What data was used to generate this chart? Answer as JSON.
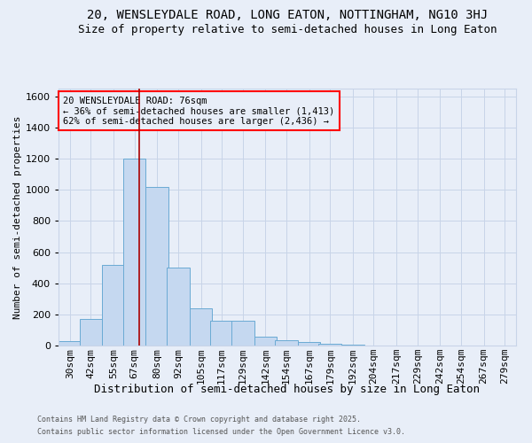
{
  "title1": "20, WENSLEYDALE ROAD, LONG EATON, NOTTINGHAM, NG10 3HJ",
  "title2": "Size of property relative to semi-detached houses in Long Eaton",
  "xlabel": "Distribution of semi-detached houses by size in Long Eaton",
  "ylabel": "Number of semi-detached properties",
  "footer1": "Contains HM Land Registry data © Crown copyright and database right 2025.",
  "footer2": "Contains public sector information licensed under the Open Government Licence v3.0.",
  "annotation_line1": "20 WENSLEYDALE ROAD: 76sqm",
  "annotation_line2": "← 36% of semi-detached houses are smaller (1,413)",
  "annotation_line3": "62% of semi-detached houses are larger (2,436) →",
  "bar_color": "#c5d8f0",
  "bar_edge_color": "#6aaad4",
  "vline_color": "#aa0000",
  "vline_x": 76,
  "background_color": "#e8eef8",
  "categories": [
    "30sqm",
    "42sqm",
    "55sqm",
    "67sqm",
    "80sqm",
    "92sqm",
    "105sqm",
    "117sqm",
    "129sqm",
    "142sqm",
    "154sqm",
    "167sqm",
    "179sqm",
    "192sqm",
    "204sqm",
    "217sqm",
    "229sqm",
    "242sqm",
    "254sqm",
    "267sqm",
    "279sqm"
  ],
  "bin_starts": [
    30,
    42,
    55,
    67,
    80,
    92,
    105,
    117,
    129,
    142,
    154,
    167,
    179,
    192,
    204,
    217,
    229,
    242,
    254,
    267,
    279
  ],
  "bin_width": 13,
  "values": [
    30,
    170,
    520,
    1200,
    1020,
    500,
    240,
    160,
    160,
    55,
    35,
    20,
    10,
    5,
    2,
    1,
    0,
    0,
    0,
    0,
    0
  ],
  "ylim": [
    0,
    1650
  ],
  "yticks": [
    0,
    200,
    400,
    600,
    800,
    1000,
    1200,
    1400,
    1600
  ],
  "grid_color": "#c8d4e8",
  "title1_fontsize": 10,
  "title2_fontsize": 9,
  "xlabel_fontsize": 9,
  "ylabel_fontsize": 8,
  "tick_fontsize": 8,
  "footer_fontsize": 6,
  "ann_fontsize": 7.5
}
